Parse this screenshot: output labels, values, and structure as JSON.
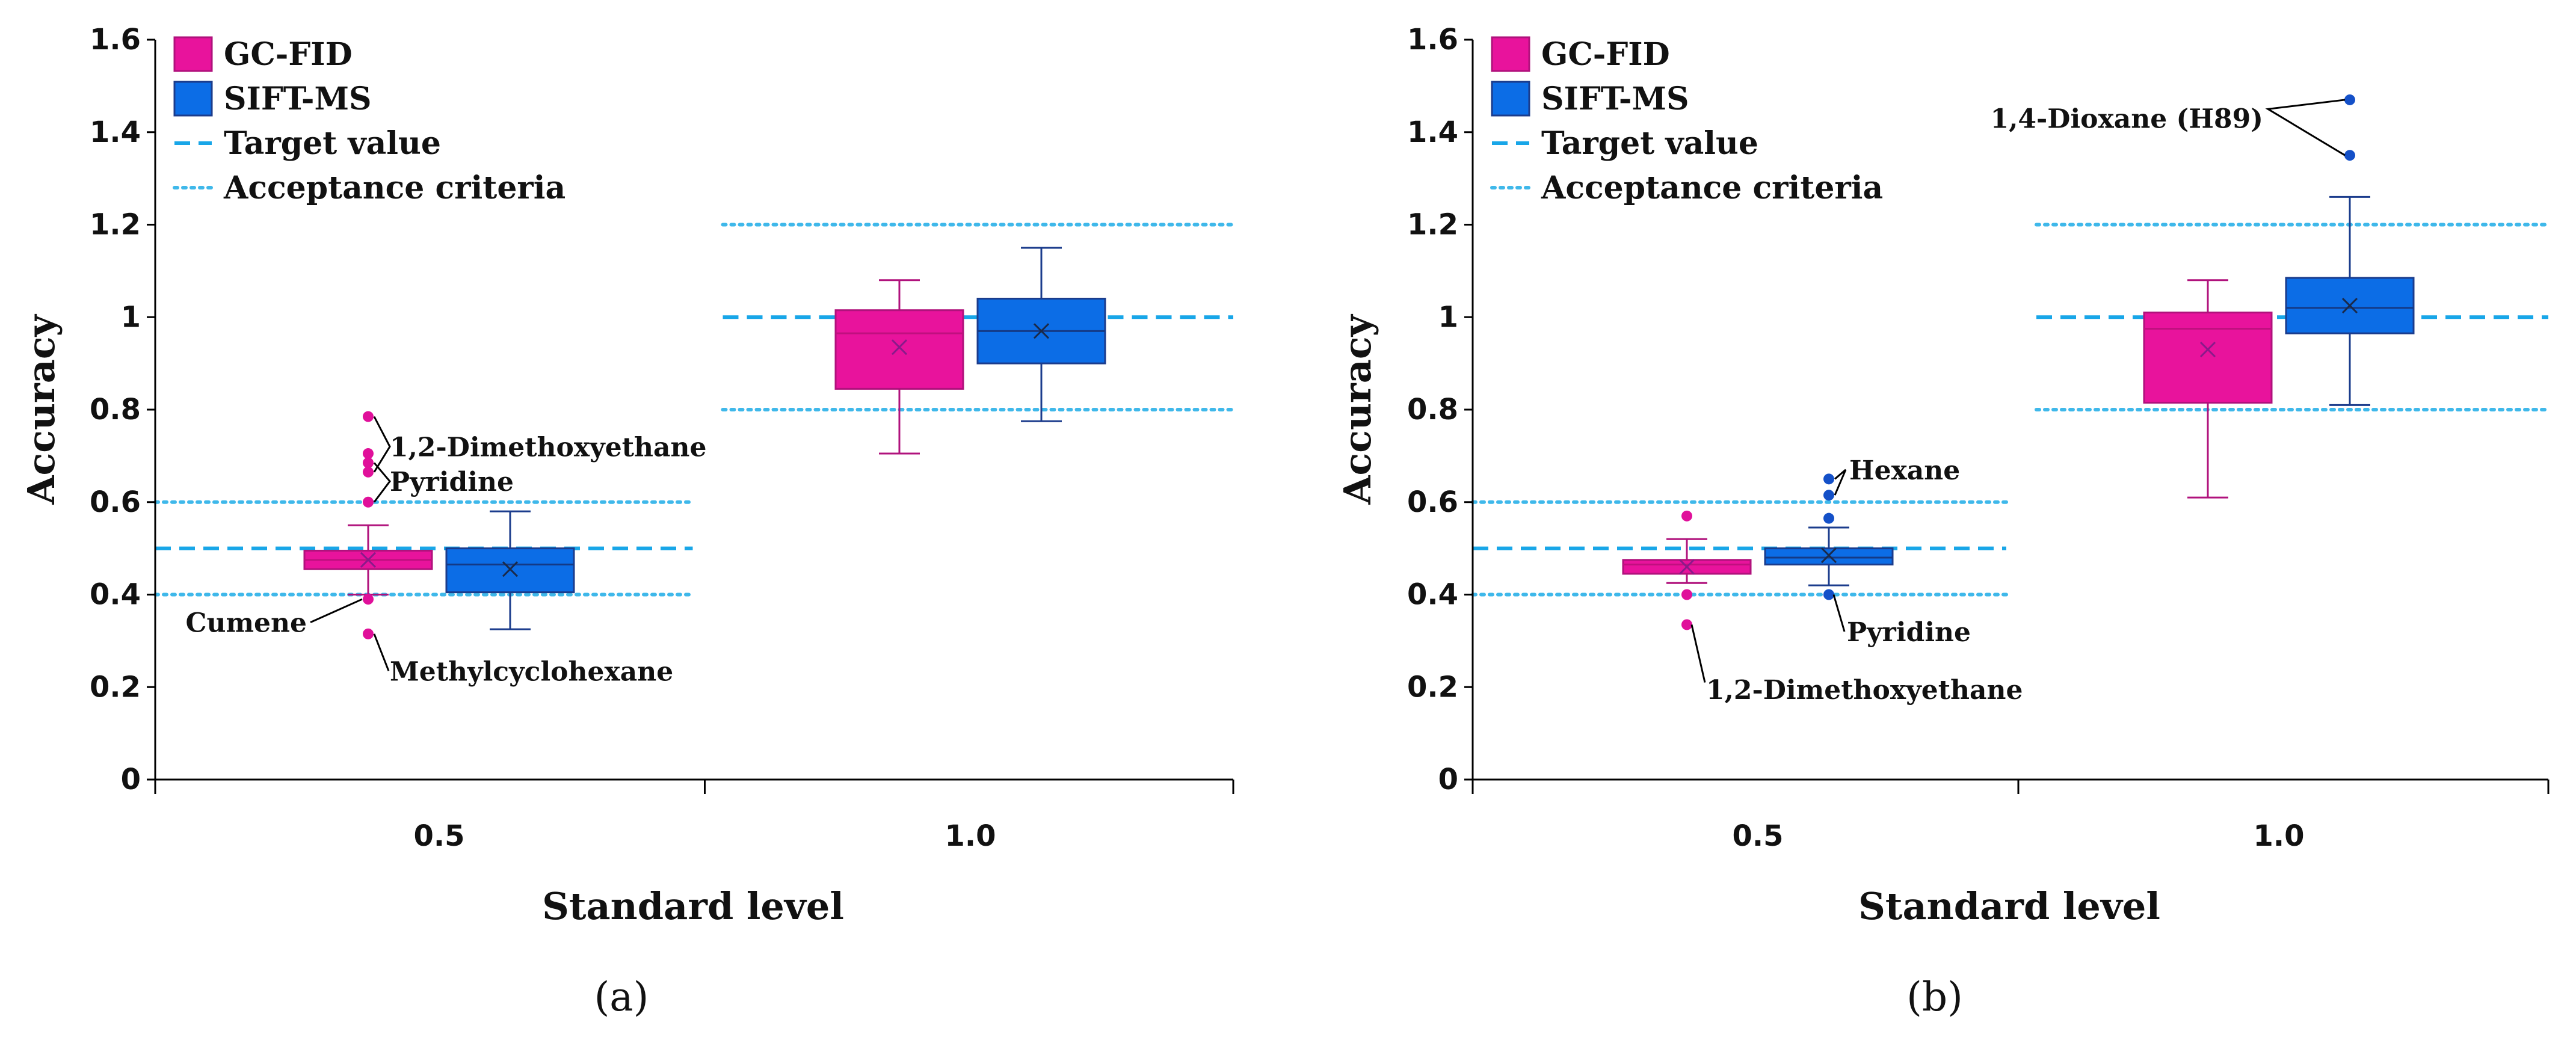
{
  "chart_data": [
    {
      "type": "box",
      "panel_label": "(a)",
      "panel_letter": "a",
      "xlabel": "Standard level",
      "ylabel": "Accuracy",
      "categories": [
        "0.5",
        "1.0"
      ],
      "ylim": [
        0,
        1.6
      ],
      "yticks": [
        {
          "v": 0,
          "label": "0"
        },
        {
          "v": 0.2,
          "label": "0.2"
        },
        {
          "v": 0.4,
          "label": "0.4"
        },
        {
          "v": 0.6,
          "label": "0.6"
        },
        {
          "v": 0.8,
          "label": "0.8"
        },
        {
          "v": 1.0,
          "label": "1"
        },
        {
          "v": 1.2,
          "label": "1.2"
        },
        {
          "v": 1.4,
          "label": "1.4"
        },
        {
          "v": 1.6,
          "label": "1.6"
        }
      ],
      "legend": [
        "GC-FID",
        "SIFT-MS",
        "Target value",
        "Acceptance criteria"
      ],
      "series": [
        {
          "name": "GC-FID",
          "boxes": [
            {
              "category": "0.5",
              "min": 0.4,
              "q1": 0.455,
              "median": 0.475,
              "q3": 0.495,
              "max": 0.55,
              "mean": 0.475,
              "outliers": [
                0.785,
                0.705,
                0.685,
                0.665,
                0.6,
                0.39,
                0.315
              ]
            },
            {
              "category": "1.0",
              "min": 0.705,
              "q1": 0.845,
              "median": 0.965,
              "q3": 1.015,
              "max": 1.08,
              "mean": 0.935,
              "outliers": []
            }
          ]
        },
        {
          "name": "SIFT-MS",
          "boxes": [
            {
              "category": "0.5",
              "min": 0.325,
              "q1": 0.405,
              "median": 0.465,
              "q3": 0.5,
              "max": 0.58,
              "mean": 0.455,
              "outliers": []
            },
            {
              "category": "1.0",
              "min": 0.775,
              "q1": 0.9,
              "median": 0.97,
              "q3": 1.04,
              "max": 1.15,
              "mean": 0.97,
              "outliers": []
            }
          ]
        }
      ],
      "reference_lines": {
        "0.5": {
          "target": 0.5,
          "acceptance": [
            0.4,
            0.6
          ]
        },
        "1.0": {
          "target": 1.0,
          "acceptance": [
            0.8,
            1.2
          ]
        }
      },
      "annotations": [
        "1,2-Dimethoxyethane",
        "Pyridine",
        "Cumene",
        "Methylcyclohexane"
      ]
    },
    {
      "type": "box",
      "panel_label": "(b)",
      "panel_letter": "b",
      "xlabel": "Standard level",
      "ylabel": "Accuracy",
      "categories": [
        "0.5",
        "1.0"
      ],
      "ylim": [
        0,
        1.6
      ],
      "yticks": [
        {
          "v": 0,
          "label": "0"
        },
        {
          "v": 0.2,
          "label": "0.2"
        },
        {
          "v": 0.4,
          "label": "0.4"
        },
        {
          "v": 0.6,
          "label": "0.6"
        },
        {
          "v": 0.8,
          "label": "0.8"
        },
        {
          "v": 1.0,
          "label": "1"
        },
        {
          "v": 1.2,
          "label": "1.2"
        },
        {
          "v": 1.4,
          "label": "1.4"
        },
        {
          "v": 1.6,
          "label": "1.6"
        }
      ],
      "legend": [
        "GC-FID",
        "SIFT-MS",
        "Target value",
        "Acceptance criteria"
      ],
      "series": [
        {
          "name": "GC-FID",
          "boxes": [
            {
              "category": "0.5",
              "min": 0.425,
              "q1": 0.445,
              "median": 0.465,
              "q3": 0.475,
              "max": 0.52,
              "mean": 0.46,
              "outliers": [
                0.57,
                0.4,
                0.335
              ]
            },
            {
              "category": "1.0",
              "min": 0.61,
              "q1": 0.815,
              "median": 0.975,
              "q3": 1.01,
              "max": 1.08,
              "mean": 0.93,
              "outliers": []
            }
          ]
        },
        {
          "name": "SIFT-MS",
          "boxes": [
            {
              "category": "0.5",
              "min": 0.42,
              "q1": 0.465,
              "median": 0.48,
              "q3": 0.5,
              "max": 0.545,
              "mean": 0.485,
              "outliers": [
                0.65,
                0.615,
                0.565,
                0.4
              ]
            },
            {
              "category": "1.0",
              "min": 0.81,
              "q1": 0.965,
              "median": 1.02,
              "q3": 1.085,
              "max": 1.26,
              "mean": 1.025,
              "outliers": [
                1.47,
                1.35
              ]
            }
          ]
        }
      ],
      "reference_lines": {
        "0.5": {
          "target": 0.5,
          "acceptance": [
            0.4,
            0.6
          ]
        },
        "1.0": {
          "target": 1.0,
          "acceptance": [
            0.8,
            1.2
          ]
        }
      },
      "annotations": [
        "Hexane",
        "Pyridine",
        "1,2-Dimethoxyethane",
        "1,4-Dioxane (H89)"
      ]
    }
  ],
  "colors": {
    "gc_fid": "#e8139c",
    "gc_fid_edge": "#b0127c",
    "sift_ms": "#0c6de6",
    "sift_ms_edge": "#1b3c8c",
    "target": "#18a6e8",
    "acceptance": "#3fb8ea",
    "outlier_gc": "#e0109a",
    "outlier_sift": "#1450c8"
  }
}
